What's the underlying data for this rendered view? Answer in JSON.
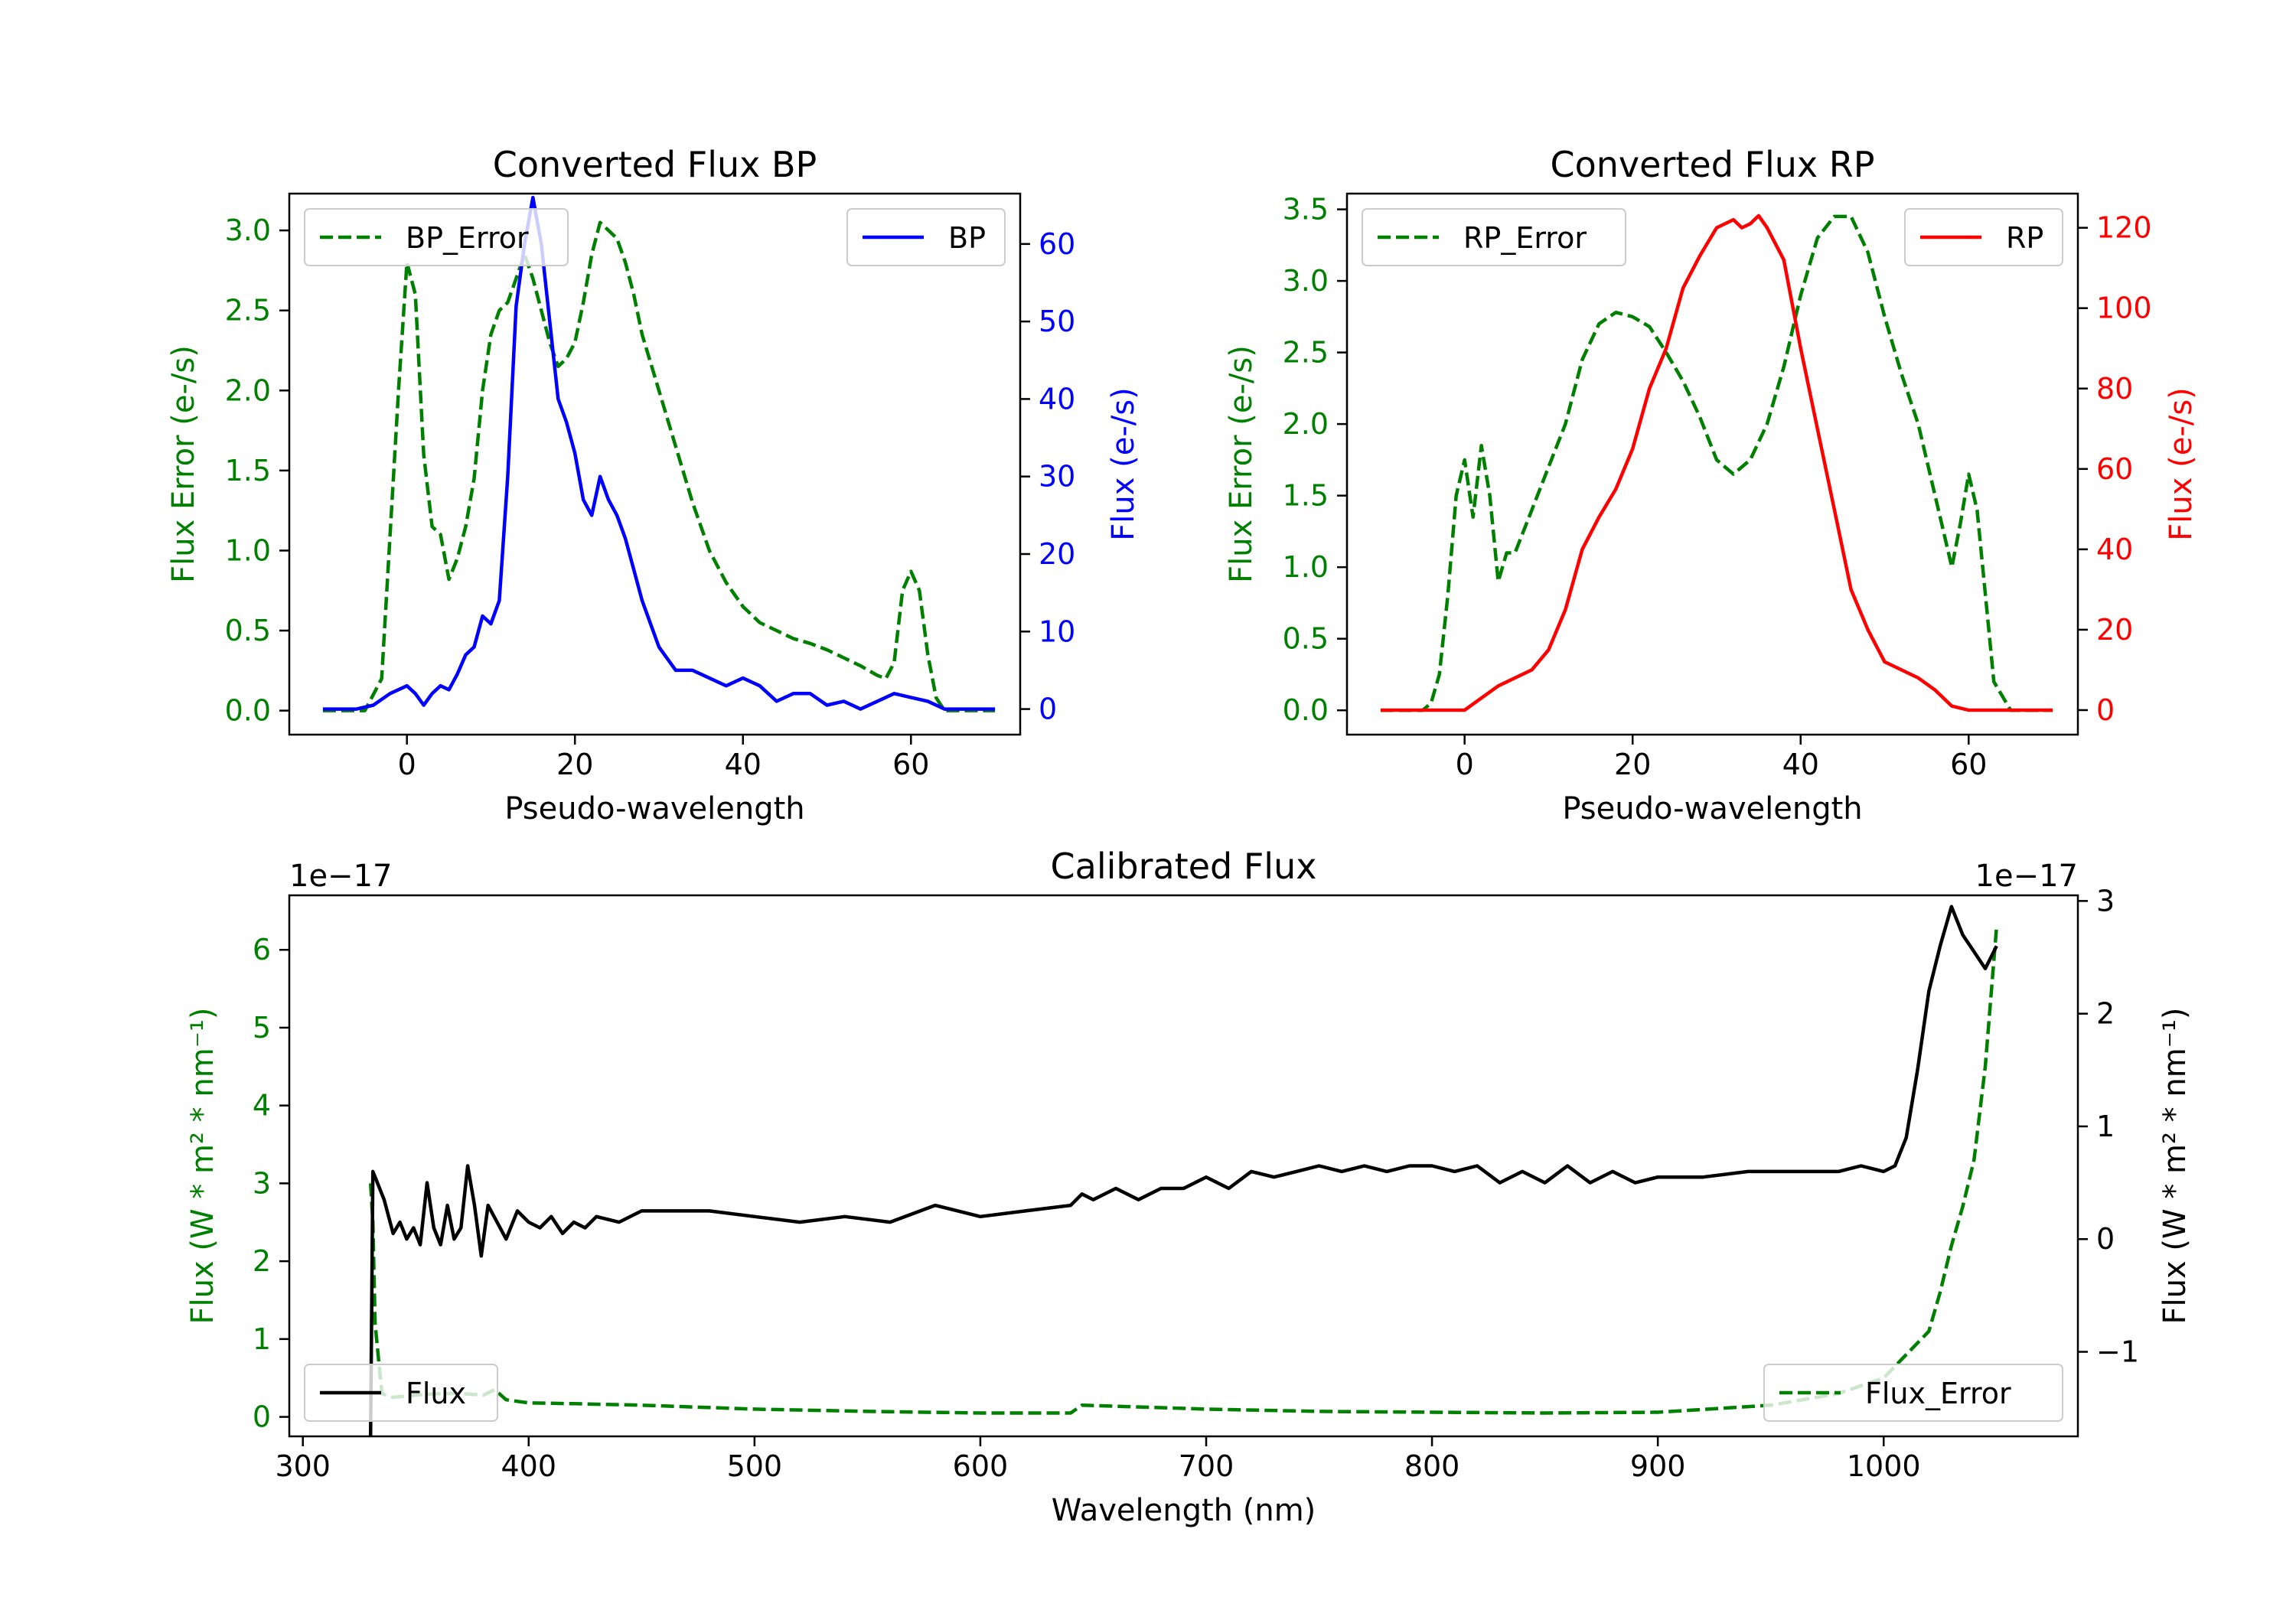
{
  "chart_data": [
    {
      "type": "line",
      "title": "Converted Flux BP",
      "xlabel": "Pseudo-wavelength",
      "ylabel_left": "Flux Error (e-/s)",
      "ylabel_right": "Flux (e-/s)",
      "xlim": [
        -14,
        73
      ],
      "ylim_left": [
        -0.15,
        3.23
      ],
      "ylim_right": [
        -3.3,
        66.5
      ],
      "xticks": [
        0,
        20,
        40,
        60
      ],
      "yticks_left": [
        0.0,
        0.5,
        1.0,
        1.5,
        2.0,
        2.5,
        3.0
      ],
      "yticks_right": [
        0,
        10,
        20,
        30,
        40,
        50,
        60
      ],
      "colors": {
        "error": "#008000",
        "flux": "#0000ff",
        "left_axis": "#008000",
        "right_axis": "#0000ff"
      },
      "legend_left": "BP_Error",
      "legend_right": "BP",
      "series": [
        {
          "name": "BP_Error",
          "axis": "left",
          "style": "dashed",
          "x": [
            -10,
            -5,
            -3,
            -1,
            0,
            1,
            2,
            3,
            4,
            5,
            6,
            7,
            8,
            9,
            10,
            11,
            12,
            13,
            14,
            15,
            16,
            17,
            18,
            19,
            20,
            21,
            22,
            23,
            24,
            25,
            26,
            27,
            28,
            30,
            32,
            34,
            36,
            38,
            40,
            42,
            44,
            46,
            48,
            50,
            52,
            54,
            56,
            57,
            58,
            59,
            60,
            61,
            62,
            63,
            64,
            66,
            70
          ],
          "y": [
            0.0,
            0.0,
            0.2,
            2.0,
            2.8,
            2.6,
            1.6,
            1.15,
            1.1,
            0.82,
            0.95,
            1.15,
            1.45,
            2.0,
            2.35,
            2.5,
            2.55,
            2.7,
            2.85,
            2.7,
            2.5,
            2.3,
            2.15,
            2.2,
            2.3,
            2.55,
            2.85,
            3.05,
            3.0,
            2.95,
            2.8,
            2.6,
            2.35,
            2.0,
            1.65,
            1.3,
            1.0,
            0.8,
            0.65,
            0.55,
            0.5,
            0.45,
            0.42,
            0.38,
            0.33,
            0.28,
            0.22,
            0.2,
            0.3,
            0.75,
            0.87,
            0.75,
            0.35,
            0.08,
            0.0,
            0.0,
            0.0
          ]
        },
        {
          "name": "BP",
          "axis": "right",
          "style": "solid",
          "x": [
            -10,
            -6,
            -4,
            -2,
            0,
            1,
            2,
            3,
            4,
            5,
            6,
            7,
            8,
            9,
            10,
            11,
            12,
            13,
            14,
            15,
            16,
            17,
            18,
            19,
            20,
            21,
            22,
            23,
            24,
            25,
            26,
            27,
            28,
            30,
            32,
            34,
            36,
            38,
            40,
            42,
            44,
            46,
            48,
            50,
            52,
            54,
            56,
            58,
            60,
            62,
            64,
            66,
            70
          ],
          "y": [
            0,
            0,
            0.5,
            2,
            3,
            2,
            0.5,
            2,
            3,
            2.5,
            4.5,
            7,
            8,
            12,
            11,
            14,
            30,
            52,
            60,
            66,
            60,
            50,
            40,
            37,
            33,
            27,
            25,
            30,
            27,
            25,
            22,
            18,
            14,
            8,
            5,
            5,
            4,
            3,
            4,
            3,
            1,
            2,
            2,
            0.5,
            1,
            0,
            1,
            2,
            1.5,
            1,
            0,
            0,
            0
          ]
        }
      ]
    },
    {
      "type": "line",
      "title": "Converted Flux RP",
      "xlabel": "Pseudo-wavelength",
      "ylabel_left": "Flux Error (e-/s)",
      "ylabel_right": "Flux (e-/s)",
      "xlim": [
        -14,
        73
      ],
      "ylim_left": [
        -0.17,
        3.61
      ],
      "ylim_right": [
        -6.1,
        128.5
      ],
      "xticks": [
        0,
        20,
        40,
        60
      ],
      "yticks_left": [
        0.0,
        0.5,
        1.0,
        1.5,
        2.0,
        2.5,
        3.0,
        3.5
      ],
      "yticks_right": [
        0,
        20,
        40,
        60,
        80,
        100,
        120
      ],
      "colors": {
        "error": "#008000",
        "flux": "#ff0000",
        "left_axis": "#008000",
        "right_axis": "#ff0000"
      },
      "legend_left": "RP_Error",
      "legend_right": "RP",
      "series": [
        {
          "name": "RP_Error",
          "axis": "left",
          "style": "dashed",
          "x": [
            -10,
            -5,
            -4,
            -3,
            -2,
            -1,
            0,
            1,
            2,
            3,
            4,
            5,
            6,
            7,
            8,
            10,
            12,
            14,
            16,
            18,
            20,
            22,
            24,
            26,
            28,
            30,
            32,
            34,
            36,
            38,
            40,
            42,
            44,
            46,
            48,
            50,
            52,
            54,
            56,
            57,
            58,
            59,
            60,
            61,
            62,
            63,
            65,
            70
          ],
          "y": [
            0.0,
            0.0,
            0.05,
            0.25,
            0.8,
            1.5,
            1.75,
            1.35,
            1.85,
            1.5,
            0.9,
            1.1,
            1.1,
            1.25,
            1.4,
            1.7,
            2.0,
            2.45,
            2.7,
            2.78,
            2.75,
            2.68,
            2.5,
            2.3,
            2.05,
            1.75,
            1.65,
            1.75,
            2.0,
            2.4,
            2.9,
            3.3,
            3.45,
            3.45,
            3.2,
            2.75,
            2.35,
            2.0,
            1.5,
            1.25,
            1.0,
            1.3,
            1.65,
            1.4,
            0.8,
            0.2,
            0.0,
            0.0
          ]
        },
        {
          "name": "RP",
          "axis": "right",
          "style": "solid",
          "x": [
            -10,
            -2,
            0,
            2,
            4,
            6,
            8,
            10,
            12,
            14,
            16,
            18,
            20,
            22,
            24,
            26,
            28,
            30,
            32,
            33,
            34,
            35,
            36,
            38,
            40,
            42,
            44,
            46,
            48,
            50,
            52,
            54,
            56,
            58,
            60,
            62,
            64,
            70
          ],
          "y": [
            0,
            0,
            0,
            3,
            6,
            8,
            10,
            15,
            25,
            40,
            48,
            55,
            65,
            80,
            90,
            105,
            113,
            120,
            122,
            120,
            121,
            123,
            120,
            112,
            90,
            70,
            50,
            30,
            20,
            12,
            10,
            8,
            5,
            1,
            0,
            0,
            0,
            0
          ]
        }
      ]
    },
    {
      "type": "line",
      "title": "Calibrated Flux",
      "xlabel": "Wavelength (nm)",
      "ylabel_left": "Flux (W * m² * nm⁻¹)",
      "ylabel_right": "Flux (W * m² * nm⁻¹)",
      "offset_left": "1e−17",
      "offset_right": "1e−17",
      "xlim": [
        294,
        1086
      ],
      "ylim_left": [
        -0.25,
        6.7
      ],
      "ylim_right": [
        -1.75,
        3.05
      ],
      "xticks": [
        300,
        400,
        500,
        600,
        700,
        800,
        900,
        1000
      ],
      "yticks_left": [
        0,
        1,
        2,
        3,
        4,
        5,
        6
      ],
      "yticks_right": [
        -1,
        0,
        1,
        2,
        3
      ],
      "ytick_labels_right": [
        "−1",
        "0",
        "1",
        "2",
        "3"
      ],
      "colors": {
        "error": "#008000",
        "flux": "#000000",
        "left_axis": "#008000",
        "right_axis": "#000000"
      },
      "legend_left": "Flux",
      "legend_right": "Flux_Error",
      "series": [
        {
          "name": "Flux_Error",
          "axis": "left",
          "style": "dashed",
          "x": [
            330,
            331,
            332,
            335,
            340,
            350,
            360,
            370,
            380,
            385,
            390,
            400,
            420,
            450,
            500,
            550,
            600,
            640,
            645,
            700,
            750,
            800,
            850,
            900,
            950,
            980,
            1000,
            1010,
            1020,
            1025,
            1030,
            1035,
            1040,
            1045,
            1050
          ],
          "y": [
            3.0,
            2.5,
            1.2,
            0.3,
            0.25,
            0.28,
            0.3,
            0.3,
            0.28,
            0.35,
            0.22,
            0.18,
            0.17,
            0.15,
            0.1,
            0.07,
            0.05,
            0.05,
            0.15,
            0.1,
            0.07,
            0.06,
            0.05,
            0.06,
            0.15,
            0.3,
            0.5,
            0.8,
            1.1,
            1.6,
            2.2,
            2.7,
            3.3,
            4.5,
            6.3
          ]
        },
        {
          "name": "Flux",
          "axis": "right",
          "style": "solid",
          "x": [
            330,
            331,
            333,
            336,
            340,
            343,
            346,
            349,
            352,
            355,
            358,
            361,
            364,
            367,
            370,
            373,
            376,
            379,
            382,
            386,
            390,
            395,
            400,
            405,
            410,
            415,
            420,
            425,
            430,
            440,
            450,
            460,
            480,
            500,
            520,
            540,
            560,
            580,
            600,
            620,
            640,
            645,
            650,
            660,
            670,
            680,
            690,
            700,
            710,
            720,
            730,
            740,
            750,
            760,
            770,
            780,
            790,
            800,
            810,
            820,
            830,
            840,
            850,
            860,
            870,
            880,
            890,
            900,
            920,
            940,
            960,
            980,
            990,
            1000,
            1005,
            1010,
            1015,
            1020,
            1025,
            1030,
            1035,
            1040,
            1045,
            1050
          ],
          "y": [
            -1.75,
            0.6,
            0.5,
            0.35,
            0.05,
            0.15,
            0.0,
            0.1,
            -0.05,
            0.5,
            0.1,
            -0.05,
            0.3,
            0.0,
            0.1,
            0.65,
            0.3,
            -0.15,
            0.3,
            0.15,
            0.0,
            0.25,
            0.15,
            0.1,
            0.2,
            0.05,
            0.15,
            0.1,
            0.2,
            0.15,
            0.25,
            0.25,
            0.25,
            0.2,
            0.15,
            0.2,
            0.15,
            0.3,
            0.2,
            0.25,
            0.3,
            0.4,
            0.35,
            0.45,
            0.35,
            0.45,
            0.45,
            0.55,
            0.45,
            0.6,
            0.55,
            0.6,
            0.65,
            0.6,
            0.65,
            0.6,
            0.65,
            0.65,
            0.6,
            0.65,
            0.5,
            0.6,
            0.5,
            0.65,
            0.5,
            0.6,
            0.5,
            0.55,
            0.55,
            0.6,
            0.6,
            0.6,
            0.65,
            0.6,
            0.65,
            0.9,
            1.5,
            2.2,
            2.6,
            2.95,
            2.7,
            2.55,
            2.4,
            2.6
          ]
        }
      ]
    }
  ]
}
